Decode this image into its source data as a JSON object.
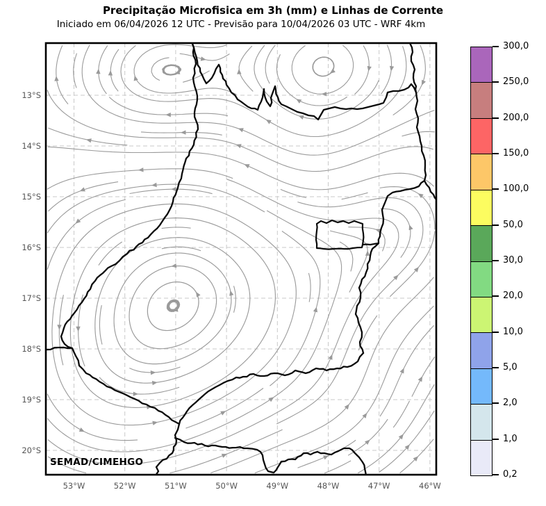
{
  "header": {
    "title": "Precipitação Microfisica em 3h (mm) e Linhas de Corrente",
    "subtitle": "Iniciado em 06/04/2026 12 UTC - Previsão para 10/04/2026 03 UTC - WRF 4km"
  },
  "map": {
    "watermark": "SEMAD/CIMEHGO",
    "lat_tick_labels": [
      "13°S",
      "14°S",
      "15°S",
      "16°S",
      "17°S",
      "18°S",
      "19°S",
      "20°S"
    ],
    "lon_tick_labels": [
      "53°W",
      "52°W",
      "51°W",
      "50°W",
      "49°W",
      "48°W",
      "47°W",
      "46°W"
    ]
  },
  "colorbar": {
    "tick_labels_top_to_bottom": [
      "300,0",
      "250,0",
      "200,0",
      "150,0",
      "100,0",
      "50,0",
      "30,0",
      "20,0",
      "10,0",
      "5,0",
      "2,0",
      "1,0",
      "0,2"
    ],
    "tick_values_top_to_bottom": [
      300.0,
      250.0,
      200.0,
      150.0,
      100.0,
      50.0,
      30.0,
      20.0,
      10.0,
      5.0,
      2.0,
      1.0,
      0.2
    ],
    "segment_colors_top_to_bottom": [
      "#aa66bb",
      "#c77e7e",
      "#fd6565",
      "#fdc768",
      "#fcfc60",
      "#5aa85a",
      "#82da82",
      "#ccf573",
      "#8fa3ea",
      "#74b9fb",
      "#d4e6ec",
      "#e9eaf8"
    ]
  },
  "style_colors": {
    "streamline": "#9a9a9a",
    "state_boundary": "#0a0a0a",
    "graticule": "#c9c9c9",
    "tick_label": "#555555",
    "background": "#ffffff"
  }
}
